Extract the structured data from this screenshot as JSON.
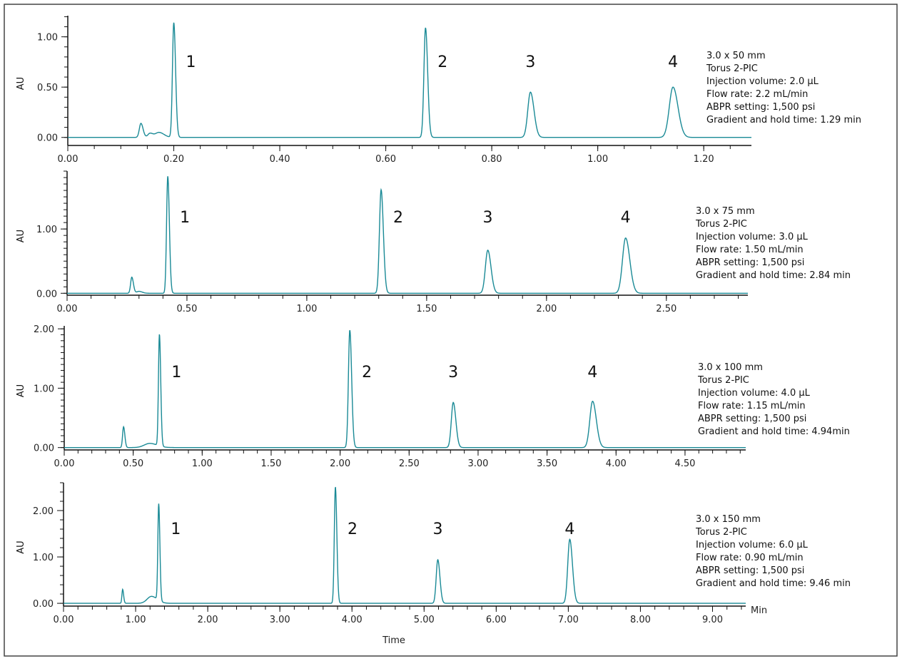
{
  "colors": {
    "trace": "#1a8a96",
    "axis": "#111111",
    "border": "#444444"
  },
  "x_label": "Time",
  "x_unit": "Min",
  "chart_data": [
    {
      "type": "line",
      "ylabel": "AU",
      "xlim": [
        0,
        1.29
      ],
      "ylim": [
        -0.08,
        1.21
      ],
      "x_ticks": [
        0,
        0.2,
        0.4,
        0.6,
        0.8,
        1.0,
        1.2
      ],
      "x_tick_labels": [
        "0.00",
        "0.20",
        "0.40",
        "0.60",
        "0.80",
        "1.00",
        "1.20"
      ],
      "x_minor": 0.05,
      "y_ticks": [
        0,
        0.5,
        1.0
      ],
      "y_tick_labels": [
        "0.00",
        "0.50",
        "1.00"
      ],
      "y_minor": 0.1,
      "peaks": [
        {
          "label": "",
          "rt": 0.138,
          "height": 0.14,
          "width": 0.003
        },
        {
          "label": "",
          "rt": 0.155,
          "height": 0.04,
          "width": 0.004
        },
        {
          "label": "",
          "rt": 0.172,
          "height": 0.05,
          "width": 0.007
        },
        {
          "label": "1",
          "rt": 0.2,
          "height": 1.14,
          "width": 0.0025
        },
        {
          "label": "2",
          "rt": 0.675,
          "height": 1.09,
          "width": 0.003
        },
        {
          "label": "3",
          "rt": 0.873,
          "height": 0.45,
          "width": 0.005
        },
        {
          "label": "4",
          "rt": 1.142,
          "height": 0.5,
          "width": 0.007
        }
      ],
      "annotation": [
        "3.0 x 50 mm",
        "Torus 2-PIC",
        "Injection volume: 2.0 µL",
        "Flow rate: 2.2 mL/min",
        "ABPR setting: 1,500 psi",
        "Gradient and hold time: 1.29 min"
      ]
    },
    {
      "type": "line",
      "ylabel": "AU",
      "xlim": [
        0,
        2.84
      ],
      "ylim": [
        -0.03,
        1.9
      ],
      "x_ticks": [
        0,
        0.5,
        1.0,
        1.5,
        2.0,
        2.5
      ],
      "x_tick_labels": [
        "0.00",
        "0.50",
        "1.00",
        "1.50",
        "2.00",
        "2.50"
      ],
      "x_minor": 0.1,
      "y_ticks": [
        0,
        1.0
      ],
      "y_tick_labels": [
        "0.00",
        "1.00"
      ],
      "y_minor": 0.1,
      "peaks": [
        {
          "label": "",
          "rt": 0.27,
          "height": 0.25,
          "width": 0.005
        },
        {
          "label": "",
          "rt": 0.3,
          "height": 0.03,
          "width": 0.01
        },
        {
          "label": "1",
          "rt": 0.42,
          "height": 1.82,
          "width": 0.005
        },
        {
          "label": "2",
          "rt": 1.31,
          "height": 1.61,
          "width": 0.007
        },
        {
          "label": "3",
          "rt": 1.755,
          "height": 0.67,
          "width": 0.01
        },
        {
          "label": "4",
          "rt": 2.33,
          "height": 0.86,
          "width": 0.013
        }
      ],
      "annotation": [
        "3.0 x 75 mm",
        "Torus 2-PIC",
        "Injection volume: 3.0 µL",
        "Flow rate: 1.50 mL/min",
        "ABPR setting: 1,500 psi",
        "Gradient and hold time: 2.84 min"
      ]
    },
    {
      "type": "line",
      "ylabel": "AU",
      "xlim": [
        0,
        4.94
      ],
      "ylim": [
        -0.04,
        2.05
      ],
      "x_ticks": [
        0,
        0.5,
        1.0,
        1.5,
        2.0,
        2.5,
        3.0,
        3.5,
        4.0,
        4.5
      ],
      "x_tick_labels": [
        "0.00",
        "0.50",
        "1.00",
        "1.50",
        "2.00",
        "2.50",
        "3.00",
        "3.50",
        "4.00",
        "4.50"
      ],
      "x_minor": 0.1,
      "y_ticks": [
        0,
        1.0,
        2.0
      ],
      "y_tick_labels": [
        "0.00",
        "1.00",
        "2.00"
      ],
      "y_minor": 0.1,
      "peaks": [
        {
          "label": "",
          "rt": 0.43,
          "height": 0.35,
          "width": 0.007
        },
        {
          "label": "",
          "rt": 0.62,
          "height": 0.07,
          "width": 0.04
        },
        {
          "label": "1",
          "rt": 0.69,
          "height": 1.88,
          "width": 0.007
        },
        {
          "label": "2",
          "rt": 2.07,
          "height": 1.98,
          "width": 0.01
        },
        {
          "label": "3",
          "rt": 2.82,
          "height": 0.76,
          "width": 0.014
        },
        {
          "label": "4",
          "rt": 3.83,
          "height": 0.78,
          "width": 0.02
        }
      ],
      "annotation": [
        "3.0 x 100 mm",
        "Torus 2-PIC",
        "Injection volume: 4.0 µL",
        "Flow rate: 1.15 mL/min",
        "ABPR setting: 1,500 psi",
        "Gradient and hold time: 4.94min"
      ]
    },
    {
      "type": "line",
      "ylabel": "AU",
      "xlim": [
        0,
        9.46
      ],
      "ylim": [
        -0.06,
        2.6
      ],
      "x_ticks": [
        0,
        1,
        2,
        3,
        4,
        5,
        6,
        7,
        8,
        9
      ],
      "x_tick_labels": [
        "0.00",
        "1.00",
        "2.00",
        "3.00",
        "4.00",
        "5.00",
        "6.00",
        "7.00",
        "8.00",
        "9.00"
      ],
      "x_minor": 0.2,
      "y_ticks": [
        0,
        1.0,
        2.0
      ],
      "y_tick_labels": [
        "0.00",
        "1.00",
        "2.00"
      ],
      "y_minor": 0.2,
      "peaks": [
        {
          "label": "",
          "rt": 0.82,
          "height": 0.3,
          "width": 0.01
        },
        {
          "label": "",
          "rt": 1.22,
          "height": 0.15,
          "width": 0.06
        },
        {
          "label": "1",
          "rt": 1.32,
          "height": 2.08,
          "width": 0.012
        },
        {
          "label": "2",
          "rt": 3.77,
          "height": 2.51,
          "width": 0.015
        },
        {
          "label": "3",
          "rt": 5.19,
          "height": 0.94,
          "width": 0.022
        },
        {
          "label": "4",
          "rt": 7.02,
          "height": 1.38,
          "width": 0.028
        }
      ],
      "annotation": [
        "3.0 x 150 mm",
        "Torus 2-PIC",
        "Injection volume: 6.0 µL",
        "Flow rate: 0.90 mL/min",
        "ABPR setting: 1,500 psi",
        "Gradient and hold time: 9.46 min"
      ]
    }
  ]
}
